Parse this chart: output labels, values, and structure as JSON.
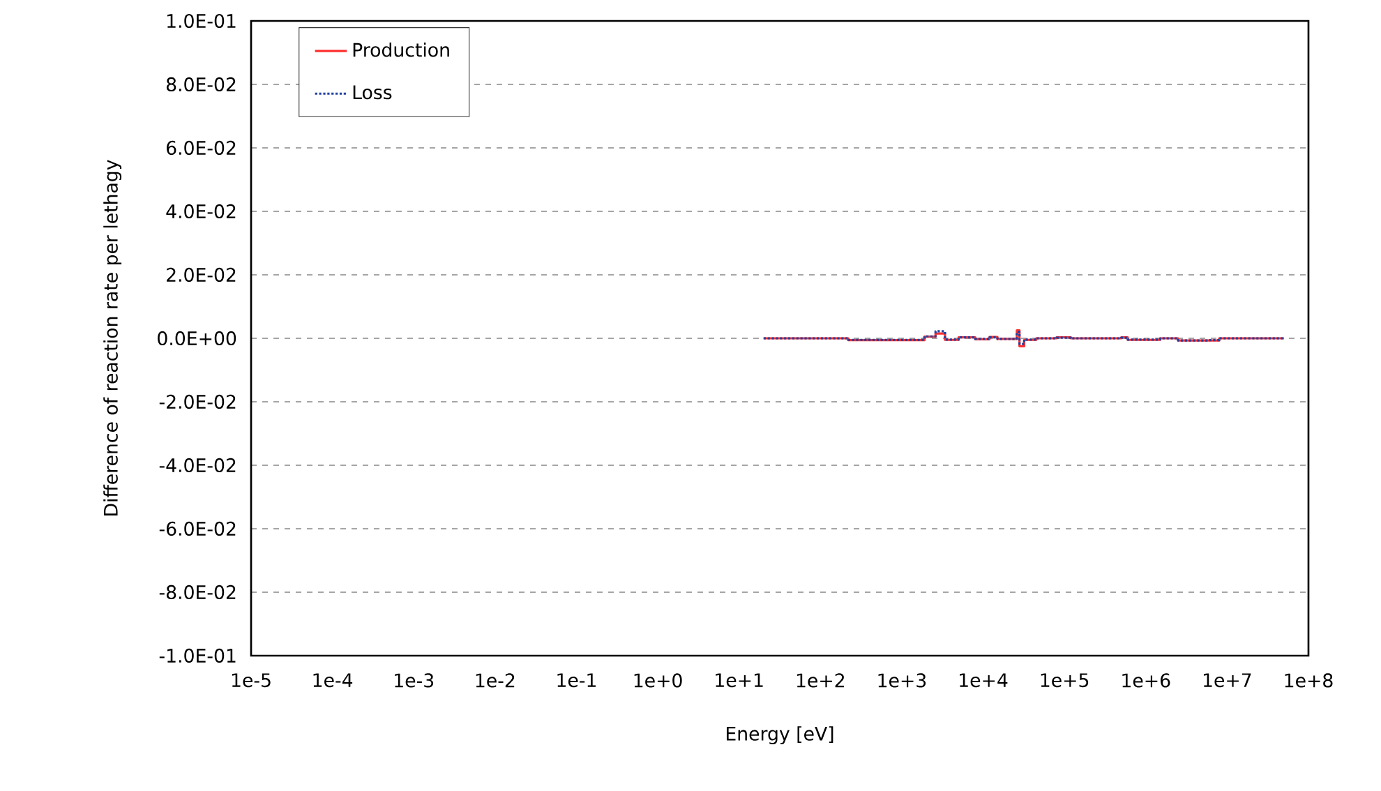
{
  "chart_data": {
    "type": "step",
    "xlabel": "Energy [eV]",
    "ylabel": "Difference of reaction rate per lethagy",
    "log": "x",
    "grid": "y",
    "legend": "top left",
    "xlim": [
      1e-05,
      100000000.0
    ],
    "ylim": [
      -0.1,
      0.1
    ],
    "xticks": [
      {
        "value": 1e-05,
        "label": "1e-5"
      },
      {
        "value": 0.0001,
        "label": "1e-4"
      },
      {
        "value": 0.001,
        "label": "1e-3"
      },
      {
        "value": 0.01,
        "label": "1e-2"
      },
      {
        "value": 0.1,
        "label": "1e-1"
      },
      {
        "value": 1,
        "label": "1e+0"
      },
      {
        "value": 10,
        "label": "1e+1"
      },
      {
        "value": 100,
        "label": "1e+2"
      },
      {
        "value": 1000,
        "label": "1e+3"
      },
      {
        "value": 10000,
        "label": "1e+4"
      },
      {
        "value": 100000,
        "label": "1e+5"
      },
      {
        "value": 1000000,
        "label": "1e+6"
      },
      {
        "value": 10000000,
        "label": "1e+7"
      },
      {
        "value": 100000000,
        "label": "1e+8"
      }
    ],
    "yticks": [
      {
        "value": 0.1,
        "label": "1.0E-01"
      },
      {
        "value": 0.08,
        "label": "8.0E-02"
      },
      {
        "value": 0.06,
        "label": "6.0E-02"
      },
      {
        "value": 0.04,
        "label": "4.0E-02"
      },
      {
        "value": 0.02,
        "label": "2.0E-02"
      },
      {
        "value": 0,
        "label": "0.0E+00"
      },
      {
        "value": -0.02,
        "label": "-2.0E-02"
      },
      {
        "value": -0.04,
        "label": "-4.0E-02"
      },
      {
        "value": -0.06,
        "label": "-6.0E-02"
      },
      {
        "value": -0.08,
        "label": "-8.0E-02"
      },
      {
        "value": -0.1,
        "label": "-1.0E-01"
      }
    ],
    "series": [
      {
        "name": "Production",
        "color": "#ff3030",
        "line_style": "solid",
        "x": [
          20,
          150,
          220,
          1200,
          1900,
          2600,
          3400,
          5000,
          8000,
          12000,
          15000,
          26000,
          28000,
          32000,
          45000,
          80000,
          120000,
          500000,
          600000,
          1500000,
          2500000,
          6000000,
          8000000,
          50000000
        ],
        "values": [
          0,
          0,
          -0.0006,
          -0.0006,
          0.0005,
          0.0015,
          -0.0005,
          0.0003,
          -0.0003,
          0.0004,
          -0.0002,
          0.0025,
          -0.0025,
          -0.0005,
          0,
          0.0003,
          0,
          0.0003,
          -0.0005,
          0,
          -0.0007,
          -0.0007,
          0,
          0
        ]
      },
      {
        "name": "Loss",
        "color": "#2040a0",
        "line_style": "dotted",
        "x": [
          20,
          150,
          220,
          1200,
          1900,
          2600,
          3400,
          5000,
          8000,
          12000,
          15000,
          26000,
          28000,
          32000,
          45000,
          80000,
          120000,
          500000,
          600000,
          1500000,
          2500000,
          6000000,
          8000000,
          50000000
        ],
        "values": [
          0,
          0,
          -0.0005,
          -0.0005,
          0.0006,
          0.0022,
          -0.0004,
          0.0003,
          -0.0002,
          0.0003,
          -0.0002,
          0.002,
          -0.0018,
          -0.0004,
          0,
          0.0002,
          0,
          0.0002,
          -0.0004,
          0,
          -0.0007,
          -0.0006,
          0,
          0
        ]
      }
    ]
  }
}
